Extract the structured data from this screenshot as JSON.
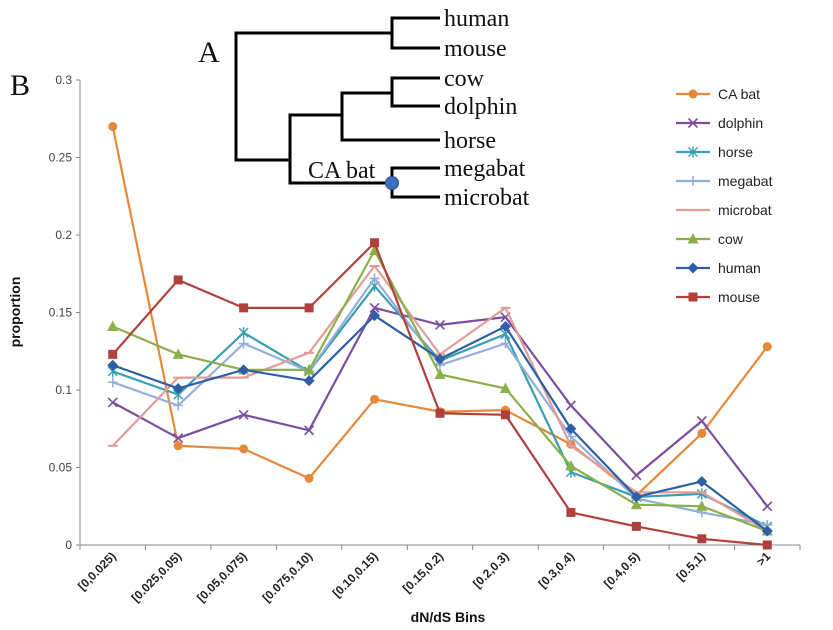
{
  "panel_labels": {
    "a": "A",
    "b": "B"
  },
  "tree": {
    "leaves": [
      "human",
      "mouse",
      "cow",
      "dolphin",
      "horse",
      "megabat",
      "microbat"
    ],
    "node_label": "CA bat"
  },
  "chart_data": {
    "type": "line",
    "xlabel": "dN/dS Bins",
    "ylabel": "proportion",
    "ylim": [
      0,
      0.3
    ],
    "yticks": [
      "0",
      "0.05",
      "0.1",
      "0.15",
      "0.2",
      "0.25",
      "0.3"
    ],
    "grid": false,
    "legend_position": "right",
    "categories": [
      "[0,0.025)",
      "[0.025,0.05)",
      "[0.05,0.075)",
      "[0.075,0.10)",
      "[0.10,0.15)",
      "[0.15,0.2)",
      "[0.2,0.3)",
      "[0.3,0.4)",
      "[0.4,0.5)",
      "[0.5,1)",
      ">1"
    ],
    "series": [
      {
        "name": "CA bat",
        "color": "#E6883A",
        "marker": "circle",
        "values": [
          0.27,
          0.064,
          0.062,
          0.043,
          0.094,
          0.086,
          0.087,
          0.065,
          0.032,
          0.072,
          0.128
        ]
      },
      {
        "name": "dolphin",
        "color": "#7B4FA0",
        "marker": "x",
        "values": [
          0.092,
          0.069,
          0.084,
          0.074,
          0.153,
          0.142,
          0.147,
          0.09,
          0.045,
          0.08,
          0.025
        ]
      },
      {
        "name": "horse",
        "color": "#3B9FB0",
        "marker": "star",
        "values": [
          0.112,
          0.097,
          0.137,
          0.112,
          0.167,
          0.119,
          0.136,
          0.047,
          0.031,
          0.033,
          0.012
        ]
      },
      {
        "name": "megabat",
        "color": "#94AEDC",
        "marker": "plus",
        "values": [
          0.105,
          0.09,
          0.13,
          0.112,
          0.172,
          0.116,
          0.13,
          0.07,
          0.03,
          0.021,
          0.013
        ]
      },
      {
        "name": "microbat",
        "color": "#E29D98",
        "marker": "dash",
        "values": [
          0.064,
          0.108,
          0.108,
          0.124,
          0.18,
          0.123,
          0.153,
          0.064,
          0.034,
          0.034,
          0.009
        ]
      },
      {
        "name": "cow",
        "color": "#8BB04A",
        "marker": "triangle",
        "values": [
          0.141,
          0.123,
          0.113,
          0.113,
          0.19,
          0.11,
          0.101,
          0.051,
          0.026,
          0.025,
          0.009
        ]
      },
      {
        "name": "human",
        "color": "#2E5FA6",
        "marker": "diamond",
        "values": [
          0.116,
          0.101,
          0.113,
          0.106,
          0.148,
          0.12,
          0.141,
          0.075,
          0.031,
          0.041,
          0.009
        ]
      },
      {
        "name": "mouse",
        "color": "#B0403B",
        "marker": "square",
        "values": [
          0.123,
          0.171,
          0.153,
          0.153,
          0.195,
          0.085,
          0.084,
          0.021,
          0.012,
          0.004,
          0.0
        ]
      }
    ]
  }
}
